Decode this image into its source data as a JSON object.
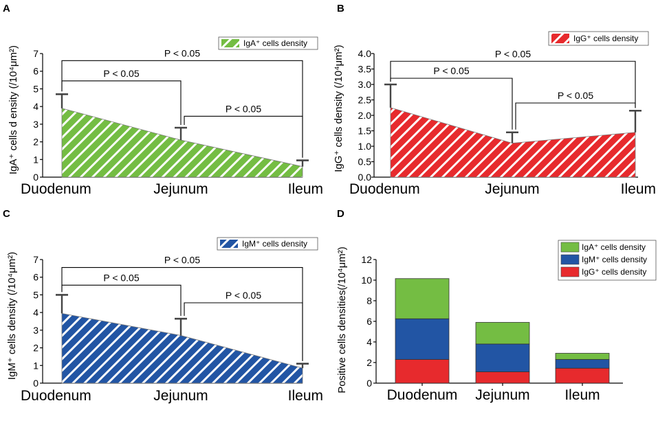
{
  "panels": {
    "A": {
      "letter": "A"
    },
    "B": {
      "letter": "B"
    },
    "C": {
      "letter": "C"
    },
    "D": {
      "letter": "D"
    }
  },
  "colors": {
    "iga": "#74bd43",
    "igg": "#e72a2d",
    "igm": "#2255a4",
    "errorbar": "#444444",
    "axis": "#000000"
  },
  "chart_data": [
    {
      "panel": "A",
      "type": "area",
      "fill_pattern": "diagonal-hatch",
      "color_key": "iga",
      "categories": [
        "Duodenum",
        "Jejunum",
        "Ileum"
      ],
      "values": [
        3.9,
        2.1,
        0.6
      ],
      "error_upper": [
        4.7,
        2.8,
        0.95
      ],
      "ylim": [
        0,
        7
      ],
      "yticks": [
        "0",
        "1",
        "2",
        "3",
        "4",
        "5",
        "6",
        "7"
      ],
      "ylabel": "IgA⁺ cells d ensity (/10⁴μm²)",
      "legend": "IgA⁺ cells density",
      "legend_position": "top-right",
      "annotations": [
        {
          "label": "P < 0.05",
          "from": 0,
          "to": 2,
          "level": 6.6
        },
        {
          "label": "P < 0.05",
          "from": 0,
          "to": 1,
          "level": 5.45
        },
        {
          "label": "P < 0.05",
          "from": 1,
          "to": 2,
          "level": 3.45
        }
      ]
    },
    {
      "panel": "B",
      "type": "area",
      "fill_pattern": "diagonal-hatch",
      "color_key": "igg",
      "categories": [
        "Duodenum",
        "Jejunum",
        "Ileum"
      ],
      "values": [
        2.25,
        1.1,
        1.45
      ],
      "error_upper": [
        3.0,
        1.45,
        2.15
      ],
      "ylim": [
        0,
        4
      ],
      "yticks": [
        "0.0",
        "0.5",
        "1.0",
        "1.5",
        "2.0",
        "2.5",
        "3.0",
        "3.5",
        "4.0"
      ],
      "ylabel": "IgG⁺  cells density (/10⁴μm²)",
      "legend": "IgG⁺ cells density",
      "legend_position": "top-right",
      "annotations": [
        {
          "label": "P < 0.05",
          "from": 0,
          "to": 2,
          "level": 3.75
        },
        {
          "label": "P < 0.05",
          "from": 0,
          "to": 1,
          "level": 3.2
        },
        {
          "label": "P < 0.05",
          "from": 1,
          "to": 2,
          "level": 2.4
        }
      ]
    },
    {
      "panel": "C",
      "type": "area",
      "fill_pattern": "diagonal-hatch",
      "color_key": "igm",
      "categories": [
        "Duodenum",
        "Jejunum",
        "Ileum"
      ],
      "values": [
        3.95,
        2.7,
        0.85
      ],
      "error_upper": [
        5.0,
        3.65,
        1.1
      ],
      "ylim": [
        0,
        7
      ],
      "yticks": [
        "0",
        "1",
        "2",
        "3",
        "4",
        "5",
        "6",
        "7"
      ],
      "ylabel": "IgM⁺  cells density (/10⁴μm²)",
      "legend": "IgM⁺ cells density",
      "legend_position": "top-right",
      "annotations": [
        {
          "label": "P < 0.05",
          "from": 0,
          "to": 2,
          "level": 6.55
        },
        {
          "label": "P < 0.05",
          "from": 0,
          "to": 1,
          "level": 5.55
        },
        {
          "label": "P < 0.05",
          "from": 1,
          "to": 2,
          "level": 4.55
        }
      ]
    },
    {
      "panel": "D",
      "type": "bar",
      "stacked": true,
      "categories": [
        "Duodenum",
        "Jejunum",
        "Ileum"
      ],
      "series": [
        {
          "name": "IgG⁺ cells density",
          "color_key": "igg",
          "values": [
            2.3,
            1.1,
            1.45
          ]
        },
        {
          "name": "IgM⁺ cells density",
          "color_key": "igm",
          "values": [
            3.95,
            2.7,
            0.85
          ]
        },
        {
          "name": "IgA⁺ cells density",
          "color_key": "iga",
          "values": [
            3.9,
            2.1,
            0.6
          ]
        }
      ],
      "ylim": [
        0,
        12
      ],
      "yticks": [
        "0",
        "2",
        "4",
        "6",
        "8",
        "10",
        "12"
      ],
      "ylabel": "Positive cells densities(/10⁴μm²)",
      "legend": [
        "IgA⁺ cells density",
        "IgM⁺ cells density",
        "IgG⁺ cells density"
      ],
      "legend_position": "top-right"
    }
  ]
}
